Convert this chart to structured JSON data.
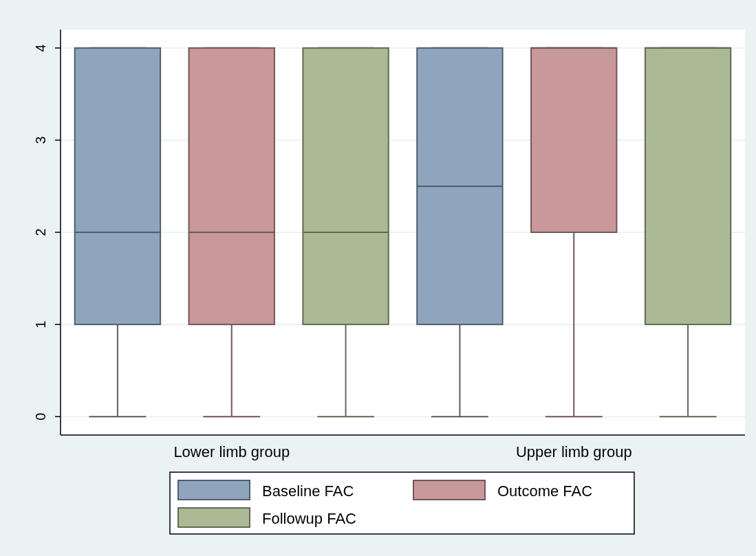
{
  "chart_data": {
    "type": "box",
    "categories": [
      "Lower limb group",
      "Upper limb group"
    ],
    "series": [
      {
        "name": "Baseline FAC",
        "color": "#8ea5bd",
        "boxes": [
          {
            "low": 0,
            "q1": 1,
            "median": 2,
            "q3": 4,
            "high": 4
          },
          {
            "low": 0,
            "q1": 1,
            "median": 2.5,
            "q3": 4,
            "high": 4
          }
        ]
      },
      {
        "name": "Outcome FAC",
        "color": "#c8989a",
        "boxes": [
          {
            "low": 0,
            "q1": 1,
            "median": 2,
            "q3": 4,
            "high": 4
          },
          {
            "low": 0,
            "q1": 2,
            "median": 4,
            "q3": 4,
            "high": 4
          }
        ]
      },
      {
        "name": "Followup FAC",
        "color": "#abba94",
        "boxes": [
          {
            "low": 0,
            "q1": 1,
            "median": 2,
            "q3": 4,
            "high": 4
          },
          {
            "low": 0,
            "q1": 1,
            "median": 4,
            "q3": 4,
            "high": 4
          }
        ]
      }
    ],
    "ylim": [
      -0.2,
      4.2
    ],
    "yticks": [
      0,
      1,
      2,
      3,
      4
    ],
    "grid": "y",
    "legend": "bottom"
  }
}
